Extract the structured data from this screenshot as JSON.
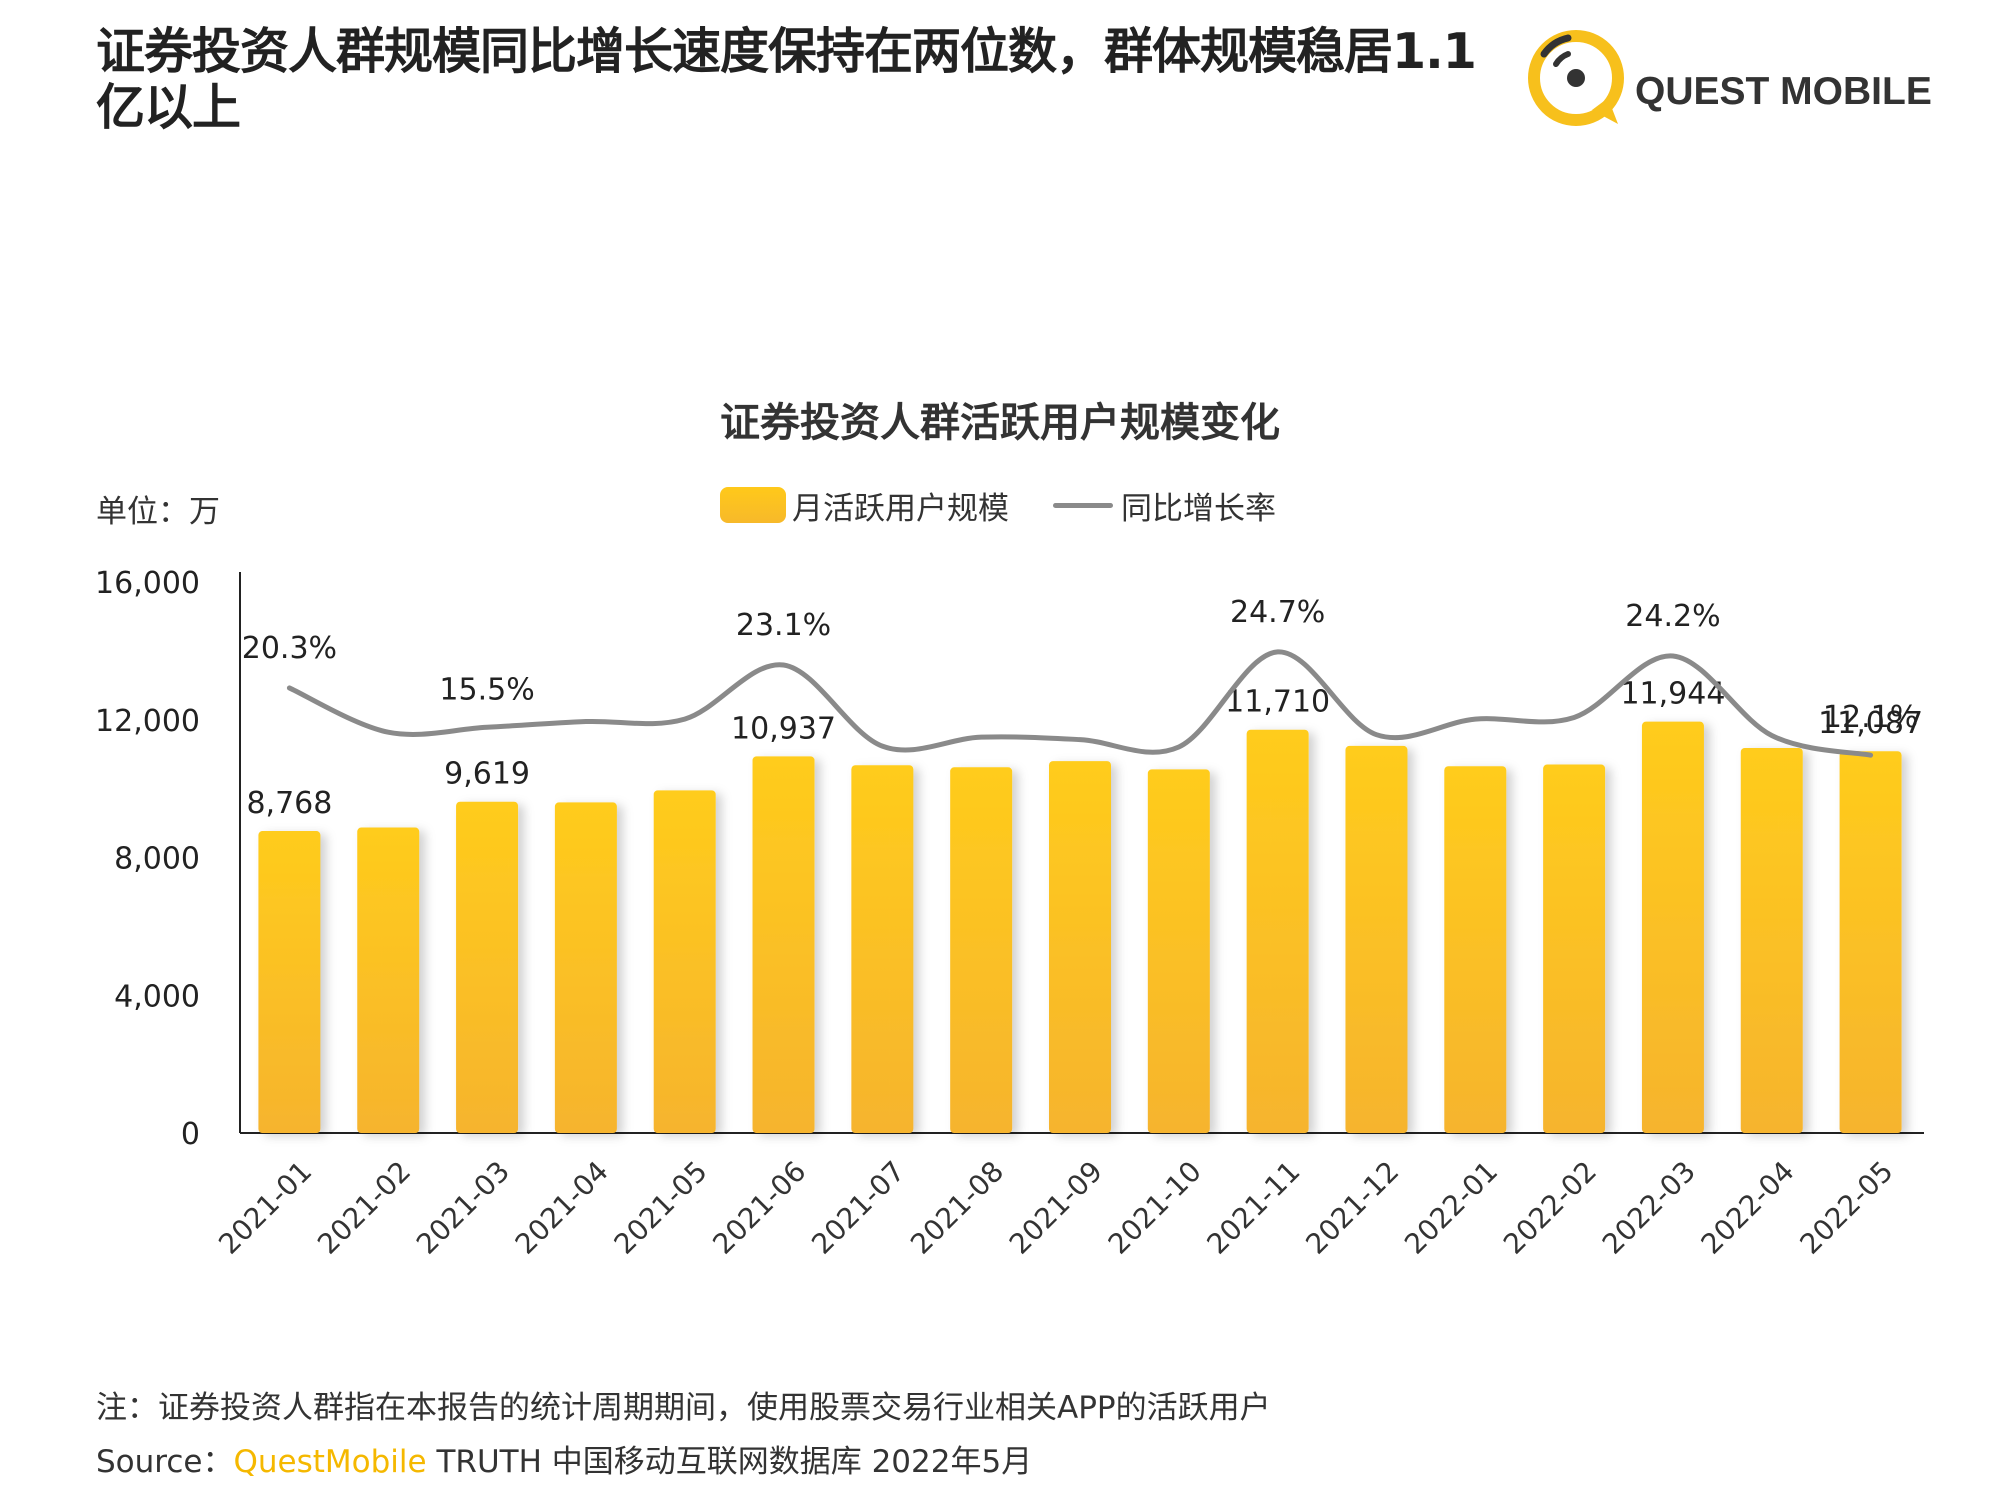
{
  "headline": "证券投资人群规模同比增长速度保持在两位数，群体规模稳居1.1亿以上",
  "brand": {
    "name": "QUEST MOBILE",
    "accent": "#f7c01c"
  },
  "unit_label": "单位：万",
  "note": "注：证券投资人群指在本报告的统计周期期间，使用股票交易行业相关APP的活跃用户",
  "source": {
    "prefix": "Source：",
    "brand": "QuestMobile",
    "rest": " TRUTH 中国移动互联网数据库 2022年5月"
  },
  "colors": {
    "bar_top": "#ffc91a",
    "bar_bottom": "#f5b52e",
    "line": "#8a8a8a",
    "axis": "#222222"
  },
  "chart_data": {
    "type": "bar",
    "title": "证券投资人群活跃用户规模变化",
    "categories": [
      "2021-01",
      "2021-02",
      "2021-03",
      "2021-04",
      "2021-05",
      "2021-06",
      "2021-07",
      "2021-08",
      "2021-09",
      "2021-10",
      "2021-11",
      "2021-12",
      "2022-01",
      "2022-02",
      "2022-03",
      "2022-04",
      "2022-05"
    ],
    "series": [
      {
        "name": "月活跃用户规模",
        "type": "bar",
        "values": [
          8768,
          8870,
          9619,
          9600,
          9950,
          10937,
          10680,
          10620,
          10800,
          10560,
          11710,
          11240,
          10650,
          10700,
          11944,
          11180,
          11087
        ],
        "labels": {
          "0": "8,768",
          "2": "9,619",
          "5": "10,937",
          "10": "11,710",
          "14": "11,944",
          "16": "11,087"
        }
      },
      {
        "name": "同比增长率",
        "type": "line",
        "values": [
          20.3,
          14.9,
          15.5,
          16.2,
          16.5,
          23.1,
          13.2,
          14.3,
          14.0,
          13.1,
          24.7,
          14.6,
          16.5,
          16.7,
          24.2,
          14.5,
          12.1
        ],
        "labels": {
          "0": "20.3%",
          "2": "15.5%",
          "5": "23.1%",
          "10": "24.7%",
          "14": "24.2%",
          "16": "12.1%"
        }
      }
    ],
    "ylim": [
      0,
      16000
    ],
    "yticks": [
      0,
      4000,
      8000,
      12000,
      16000
    ],
    "ytick_labels": [
      "0",
      "4,000",
      "8,000",
      "12,000",
      "16,000"
    ],
    "legend": "top-center",
    "grid": false
  }
}
